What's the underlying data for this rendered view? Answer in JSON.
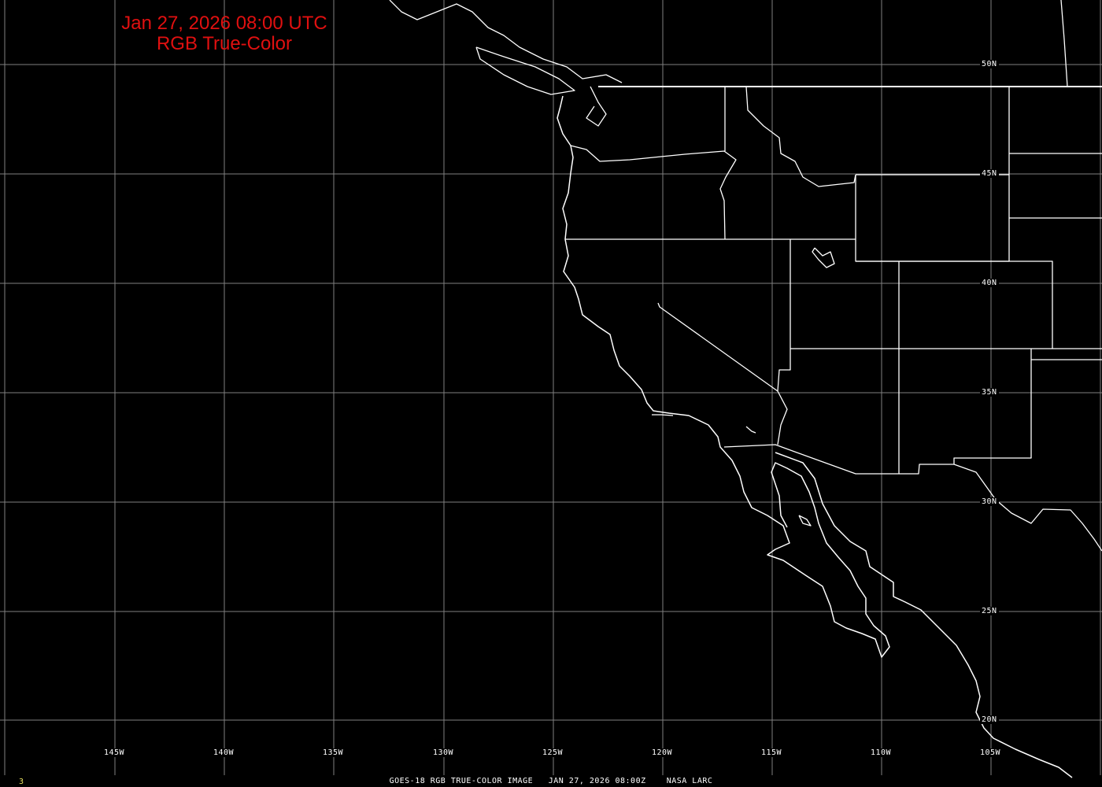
{
  "title": {
    "line1": "Jan 27, 2026 08:00 UTC",
    "line2": "RGB True-Color",
    "color": "#e01010"
  },
  "lat_labels": [
    "50N",
    "45N",
    "40N",
    "35N",
    "30N",
    "25N",
    "20N"
  ],
  "lon_labels": [
    "145W",
    "140W",
    "135W",
    "130W",
    "125W",
    "120W",
    "115W",
    "110W",
    "105W"
  ],
  "footer": {
    "caption": "GOES-18 RGB TRUE-COLOR IMAGE   JAN 27, 2026 08:00Z    NASA LARC",
    "frame": "3"
  },
  "colors": {
    "background": "#000000",
    "grid": "#808080",
    "boundaries": "#ffffff"
  }
}
